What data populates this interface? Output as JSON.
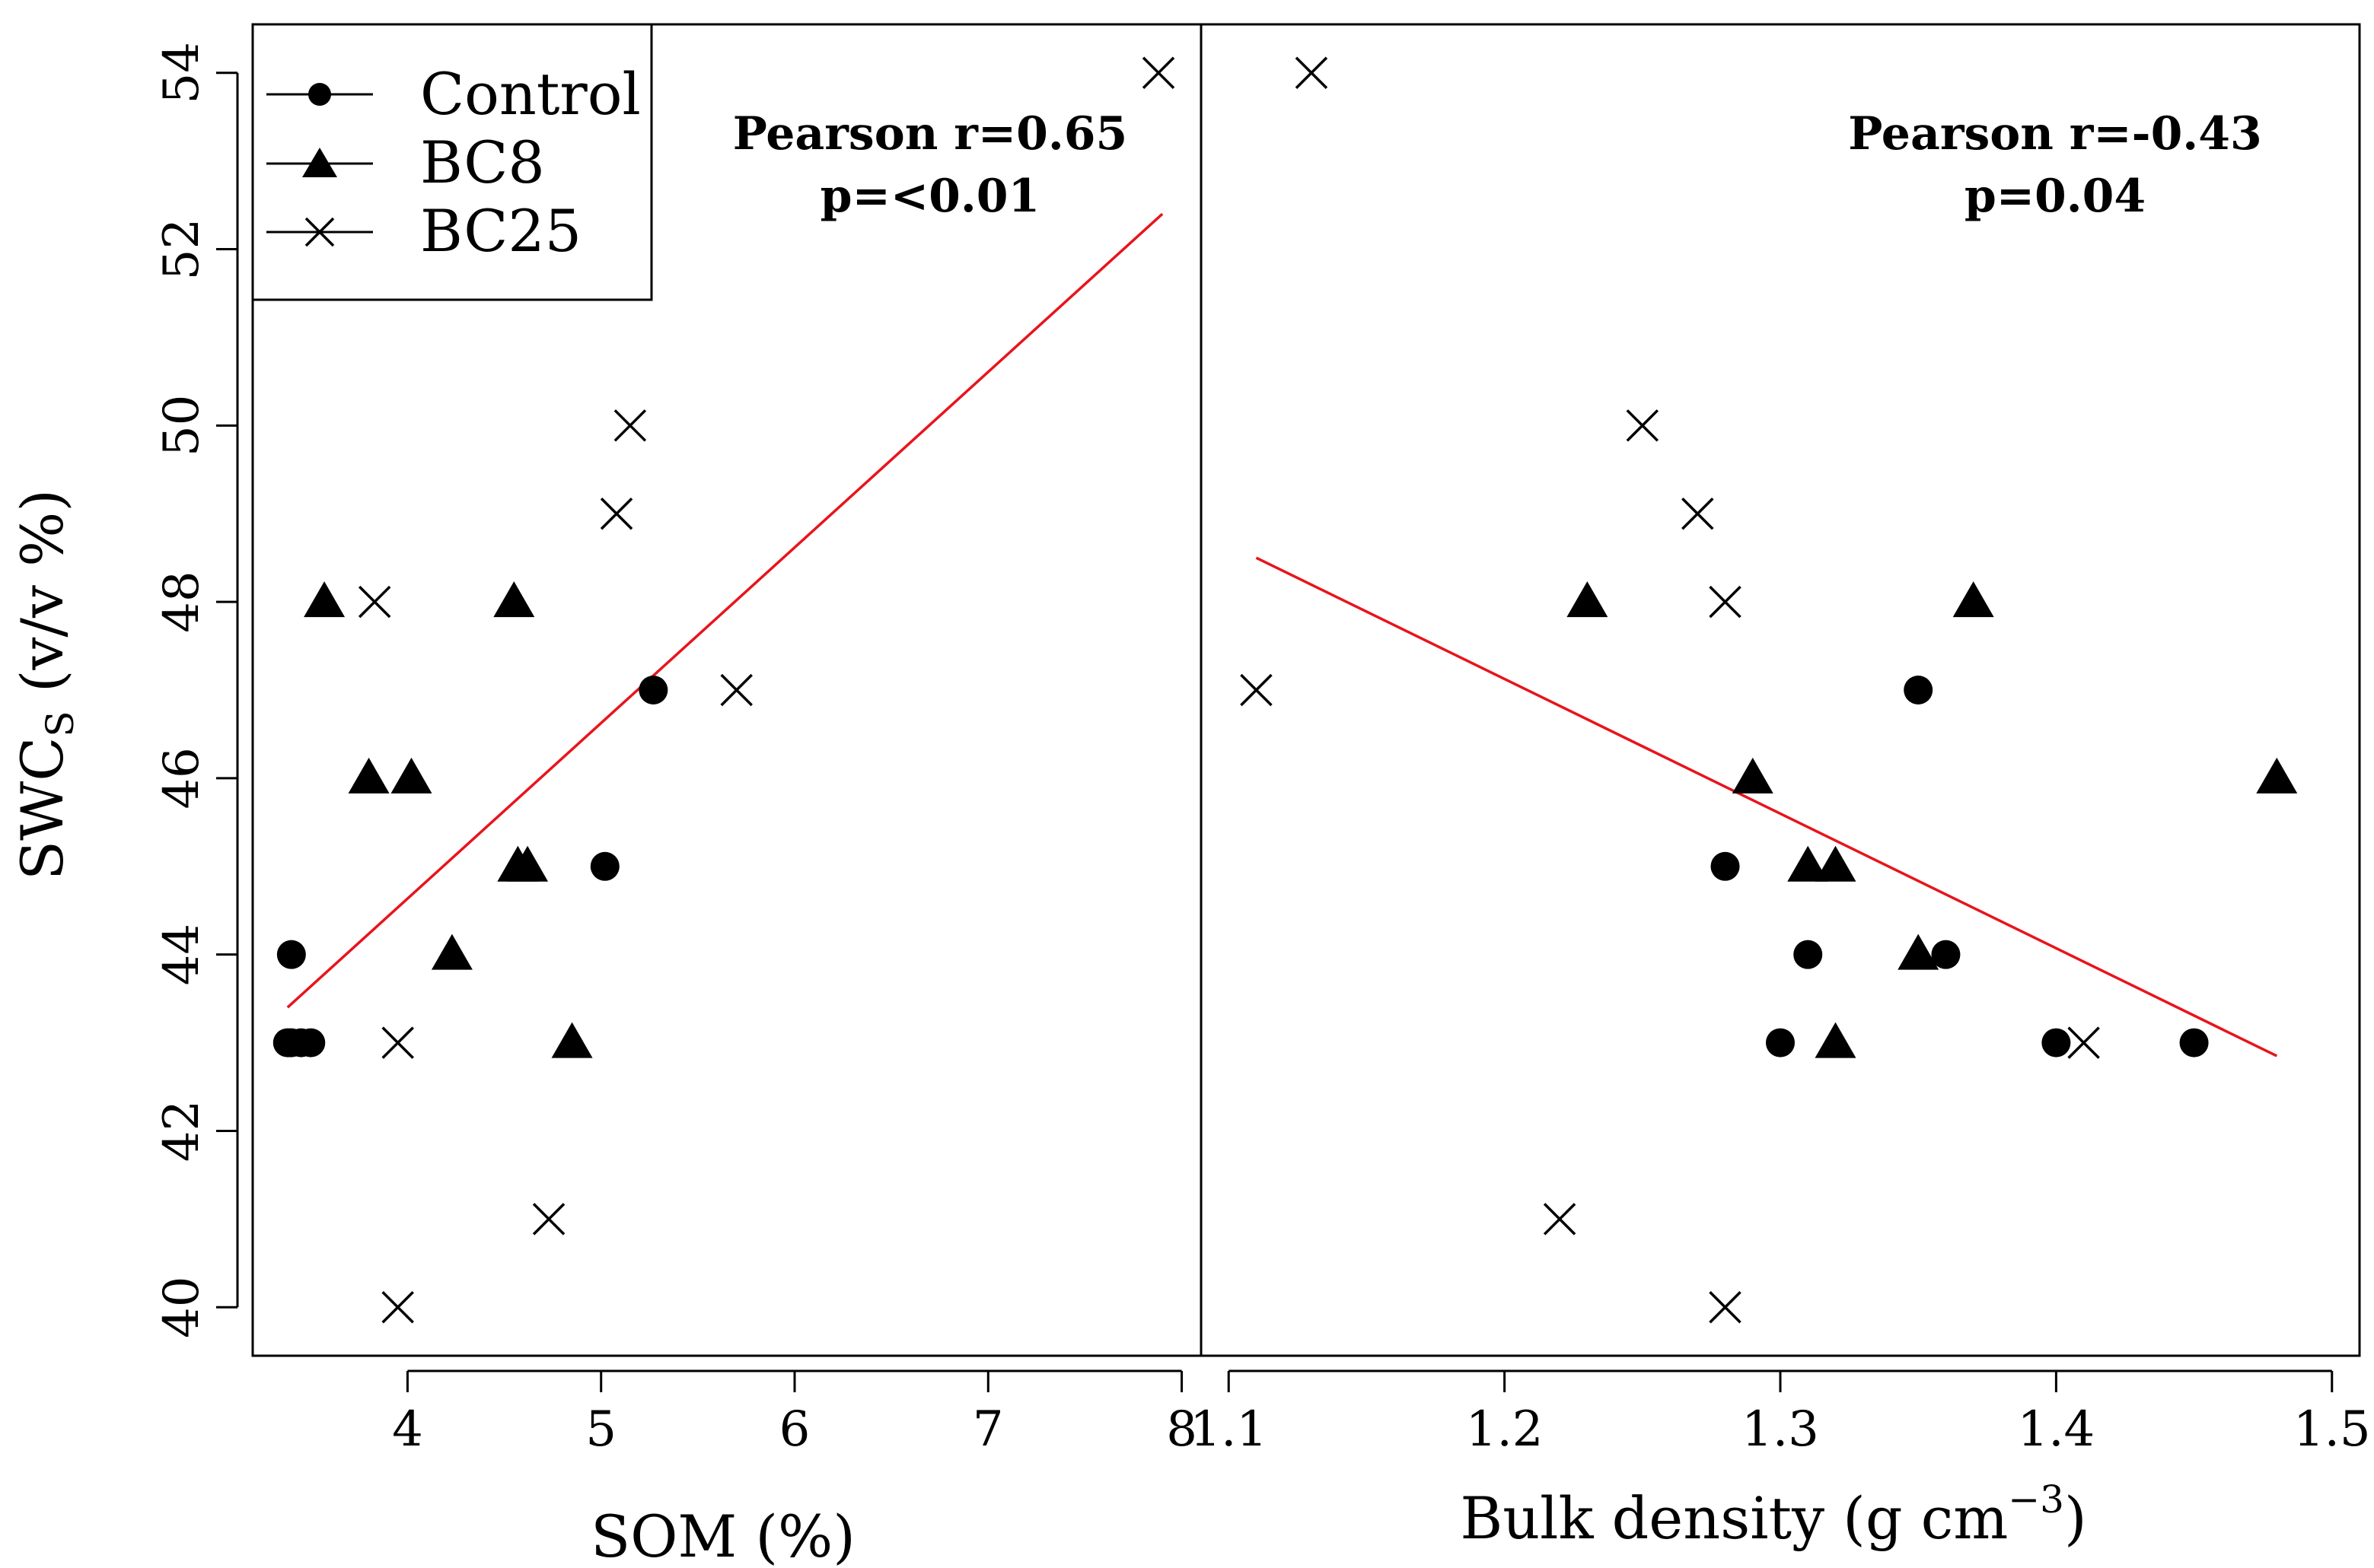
{
  "chart_data": [
    {
      "type": "scatter",
      "panel": "left",
      "xlabel": "SOM (%)",
      "ylabel_main": "SWC",
      "ylabel_sub": "S",
      "ylabel_rest": " (v/v %)",
      "xlim": [
        3.2,
        8.1
      ],
      "ylim": [
        39.45,
        54.55
      ],
      "xticks": [
        4,
        5,
        6,
        7,
        8
      ],
      "yticks": [
        40,
        42,
        44,
        46,
        48,
        50,
        52,
        54
      ],
      "annotation": [
        "Pearson r=0.65",
        "p=<0.01"
      ],
      "fit_line": {
        "x": [
          3.38,
          7.9
        ],
        "y": [
          43.4,
          52.4
        ]
      },
      "series": [
        {
          "name": "Control",
          "marker": "circle",
          "points": [
            [
              3.38,
              43
            ],
            [
              3.4,
              43
            ],
            [
              3.45,
              43
            ],
            [
              3.5,
              43
            ],
            [
              3.4,
              44
            ],
            [
              5.02,
              45
            ],
            [
              5.27,
              47
            ]
          ]
        },
        {
          "name": "BC8",
          "marker": "triangle",
          "points": [
            [
              3.57,
              48
            ],
            [
              3.8,
              46
            ],
            [
              4.02,
              46
            ],
            [
              4.23,
              44
            ],
            [
              4.55,
              48
            ],
            [
              4.57,
              45
            ],
            [
              4.62,
              45
            ],
            [
              4.85,
              43
            ]
          ]
        },
        {
          "name": "BC25",
          "marker": "x",
          "points": [
            [
              3.83,
              48
            ],
            [
              3.95,
              43
            ],
            [
              3.95,
              40
            ],
            [
              4.73,
              41
            ],
            [
              5.08,
              49
            ],
            [
              5.15,
              50
            ],
            [
              5.7,
              47
            ],
            [
              7.88,
              54
            ]
          ]
        }
      ]
    },
    {
      "type": "scatter",
      "panel": "right",
      "xlabel_main": "Bulk density (g cm",
      "xlabel_sup": "−3",
      "xlabel_close": ")",
      "xlim": [
        1.09,
        1.51
      ],
      "ylim": [
        39.45,
        54.55
      ],
      "xticks": [
        "1.1",
        "1.2",
        "1.3",
        "1.4",
        "1.5"
      ],
      "annotation": [
        "Pearson r=-0.43",
        "p=0.04"
      ],
      "fit_line": {
        "x": [
          1.11,
          1.48
        ],
        "y": [
          48.5,
          42.85
        ]
      },
      "series": [
        {
          "name": "Control",
          "marker": "circle",
          "points": [
            [
              1.28,
              45
            ],
            [
              1.3,
              43
            ],
            [
              1.31,
              44
            ],
            [
              1.35,
              47
            ],
            [
              1.36,
              44
            ],
            [
              1.4,
              43
            ],
            [
              1.45,
              43
            ]
          ]
        },
        {
          "name": "BC8",
          "marker": "triangle",
          "points": [
            [
              1.23,
              48
            ],
            [
              1.29,
              46
            ],
            [
              1.31,
              45
            ],
            [
              1.32,
              45
            ],
            [
              1.32,
              43
            ],
            [
              1.35,
              44
            ],
            [
              1.37,
              48
            ],
            [
              1.48,
              46
            ]
          ]
        },
        {
          "name": "BC25",
          "marker": "x",
          "points": [
            [
              1.11,
              47
            ],
            [
              1.13,
              54
            ],
            [
              1.22,
              41
            ],
            [
              1.25,
              50
            ],
            [
              1.27,
              49
            ],
            [
              1.28,
              48
            ],
            [
              1.28,
              40
            ],
            [
              1.41,
              43
            ]
          ]
        }
      ]
    }
  ],
  "legend": [
    {
      "label": "Control",
      "marker": "circle"
    },
    {
      "label": "BC8",
      "marker": "triangle"
    },
    {
      "label": "BC25",
      "marker": "x"
    }
  ],
  "colors": {
    "fit_line": "#e8141c",
    "marker": "#000000",
    "frame": "#000000"
  }
}
